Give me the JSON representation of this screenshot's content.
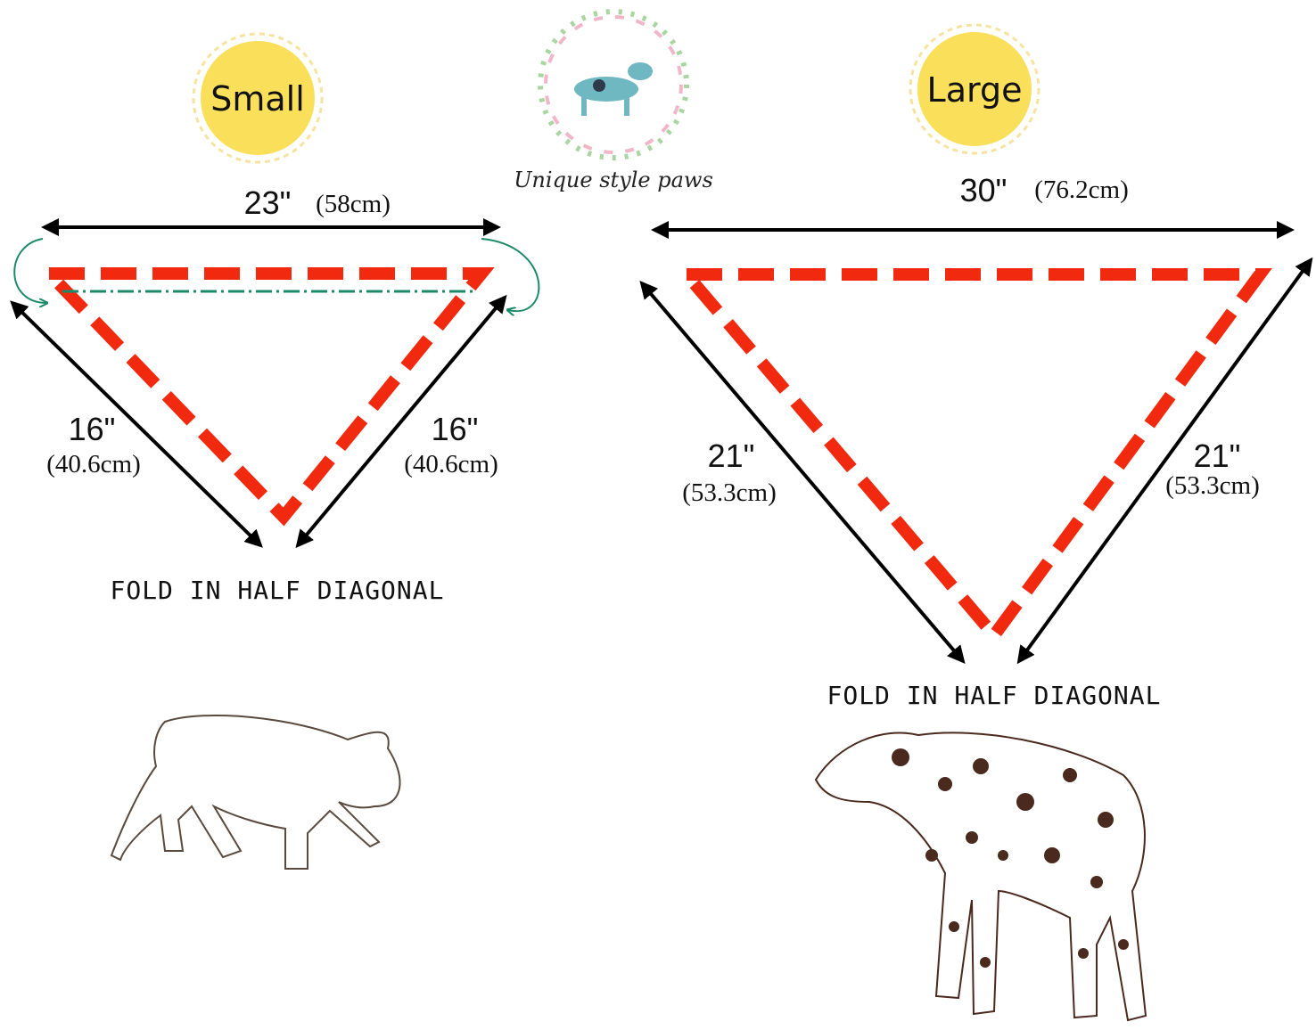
{
  "logo": {
    "text": "Unique style paws"
  },
  "small": {
    "label": "Small",
    "width": {
      "inch": "23\"",
      "cm": "(58cm)"
    },
    "left_side": {
      "inch": "16\"",
      "cm": "(40.6cm)"
    },
    "right_side": {
      "inch": "16\"",
      "cm": "(40.6cm)"
    },
    "note": "FOLD IN HALF DIAGONAL"
  },
  "large": {
    "label": "Large",
    "width": {
      "inch": "30\"",
      "cm": "(76.2cm)"
    },
    "left_side": {
      "inch": "21\"",
      "cm": "(53.3cm)"
    },
    "right_side": {
      "inch": "21\"",
      "cm": "(53.3cm)"
    },
    "note": "FOLD IN HALF DIAGONAL"
  }
}
